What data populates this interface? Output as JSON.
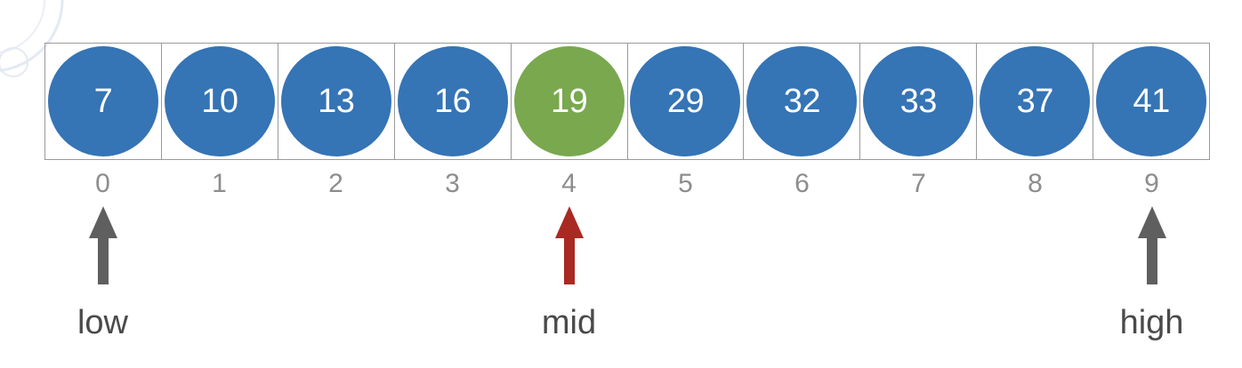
{
  "array": {
    "values": [
      "7",
      "10",
      "13",
      "16",
      "19",
      "29",
      "32",
      "33",
      "37",
      "41"
    ],
    "indices": [
      "0",
      "1",
      "2",
      "3",
      "4",
      "5",
      "6",
      "7",
      "8",
      "9"
    ],
    "highlight_index": 4
  },
  "pointers": [
    {
      "label": "low",
      "index": 0,
      "color": "#5f5f5f"
    },
    {
      "label": "mid",
      "index": 4,
      "color": "#a82a22"
    },
    {
      "label": "high",
      "index": 9,
      "color": "#5f5f5f"
    }
  ],
  "colors": {
    "element": "#3574b5",
    "highlight": "#79a84f",
    "index_text": "#8d8d8d",
    "label_text": "#4a4a4a",
    "cell_border": "#9a9a9a"
  }
}
